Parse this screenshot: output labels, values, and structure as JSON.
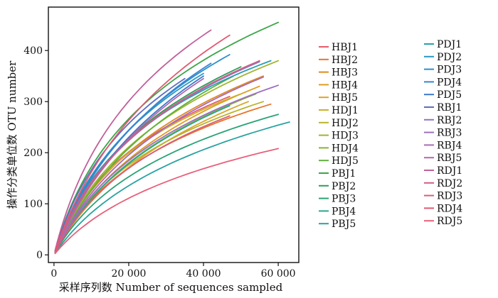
{
  "chart_data": {
    "type": "line",
    "xlabel": "采样序列数 Number of sequences sampled",
    "ylabel": "操作分类单位数 OTU number",
    "xlim": [
      -1500,
      65500
    ],
    "ylim": [
      -15,
      485
    ],
    "xticks": [
      0,
      20000,
      40000,
      60000
    ],
    "xtick_labels": [
      "0",
      "20 000",
      "40 000",
      "60 000"
    ],
    "yticks": [
      0,
      100,
      200,
      300,
      400
    ],
    "ytick_labels": [
      "0",
      "100",
      "200",
      "300",
      "400"
    ],
    "grid": false,
    "legend_position": "right",
    "series": [
      {
        "name": "HBJ1",
        "color": "#e35d6a",
        "xmax": 47000,
        "ymax": 310
      },
      {
        "name": "HBJ2",
        "color": "#e8742a",
        "xmax": 58000,
        "ymax": 295
      },
      {
        "name": "HBJ3",
        "color": "#e08a1e",
        "xmax": 56000,
        "ymax": 350
      },
      {
        "name": "HBJ4",
        "color": "#e09b24",
        "xmax": 55000,
        "ymax": 330
      },
      {
        "name": "HBJ5",
        "color": "#d8a52a",
        "xmax": 52000,
        "ymax": 300
      },
      {
        "name": "HDJ1",
        "color": "#ccb02a",
        "xmax": 50000,
        "ymax": 315
      },
      {
        "name": "HDJ2",
        "color": "#b9b32c",
        "xmax": 56000,
        "ymax": 300
      },
      {
        "name": "HDJ3",
        "color": "#9fb52e",
        "xmax": 60000,
        "ymax": 380
      },
      {
        "name": "HDJ4",
        "color": "#86b534",
        "xmax": 54000,
        "ymax": 315
      },
      {
        "name": "HDJ5",
        "color": "#5fb13c",
        "xmax": 48000,
        "ymax": 350
      },
      {
        "name": "PBJ1",
        "color": "#3aa647",
        "xmax": 60000,
        "ymax": 455
      },
      {
        "name": "PBJ2",
        "color": "#2e9e5a",
        "xmax": 50000,
        "ymax": 368
      },
      {
        "name": "PBJ3",
        "color": "#2aa275",
        "xmax": 60000,
        "ymax": 275
      },
      {
        "name": "PBJ4",
        "color": "#28a690",
        "xmax": 47000,
        "ymax": 292
      },
      {
        "name": "PBJ5",
        "color": "#2aa2a2",
        "xmax": 63000,
        "ymax": 260
      },
      {
        "name": "PDJ1",
        "color": "#2a9eb0",
        "xmax": 58000,
        "ymax": 380
      },
      {
        "name": "PDJ2",
        "color": "#2a98c0",
        "xmax": 40000,
        "ymax": 355
      },
      {
        "name": "PDJ3",
        "color": "#2a8fcc",
        "xmax": 47000,
        "ymax": 392
      },
      {
        "name": "PDJ4",
        "color": "#3a84d0",
        "xmax": 42000,
        "ymax": 375
      },
      {
        "name": "PDJ5",
        "color": "#3c78c8",
        "xmax": 40000,
        "ymax": 350
      },
      {
        "name": "RBJ1",
        "color": "#5c6ec2",
        "xmax": 35000,
        "ymax": 345
      },
      {
        "name": "RBJ2",
        "color": "#8a76c2",
        "xmax": 55000,
        "ymax": 378
      },
      {
        "name": "RBJ3",
        "color": "#9e6fc0",
        "xmax": 60000,
        "ymax": 332
      },
      {
        "name": "RBJ4",
        "color": "#a86ab8",
        "xmax": 56000,
        "ymax": 348
      },
      {
        "name": "RBJ5",
        "color": "#b866aa",
        "xmax": 40000,
        "ymax": 345
      },
      {
        "name": "RDJ1",
        "color": "#c0609a",
        "xmax": 42000,
        "ymax": 440
      },
      {
        "name": "RDJ2",
        "color": "#ce5e86",
        "xmax": 55000,
        "ymax": 380
      },
      {
        "name": "RDJ3",
        "color": "#d85e78",
        "xmax": 47000,
        "ymax": 272
      },
      {
        "name": "RDJ4",
        "color": "#e05a72",
        "xmax": 47000,
        "ymax": 430
      },
      {
        "name": "RDJ5",
        "color": "#e8607a",
        "xmax": 60000,
        "ymax": 208
      }
    ]
  }
}
